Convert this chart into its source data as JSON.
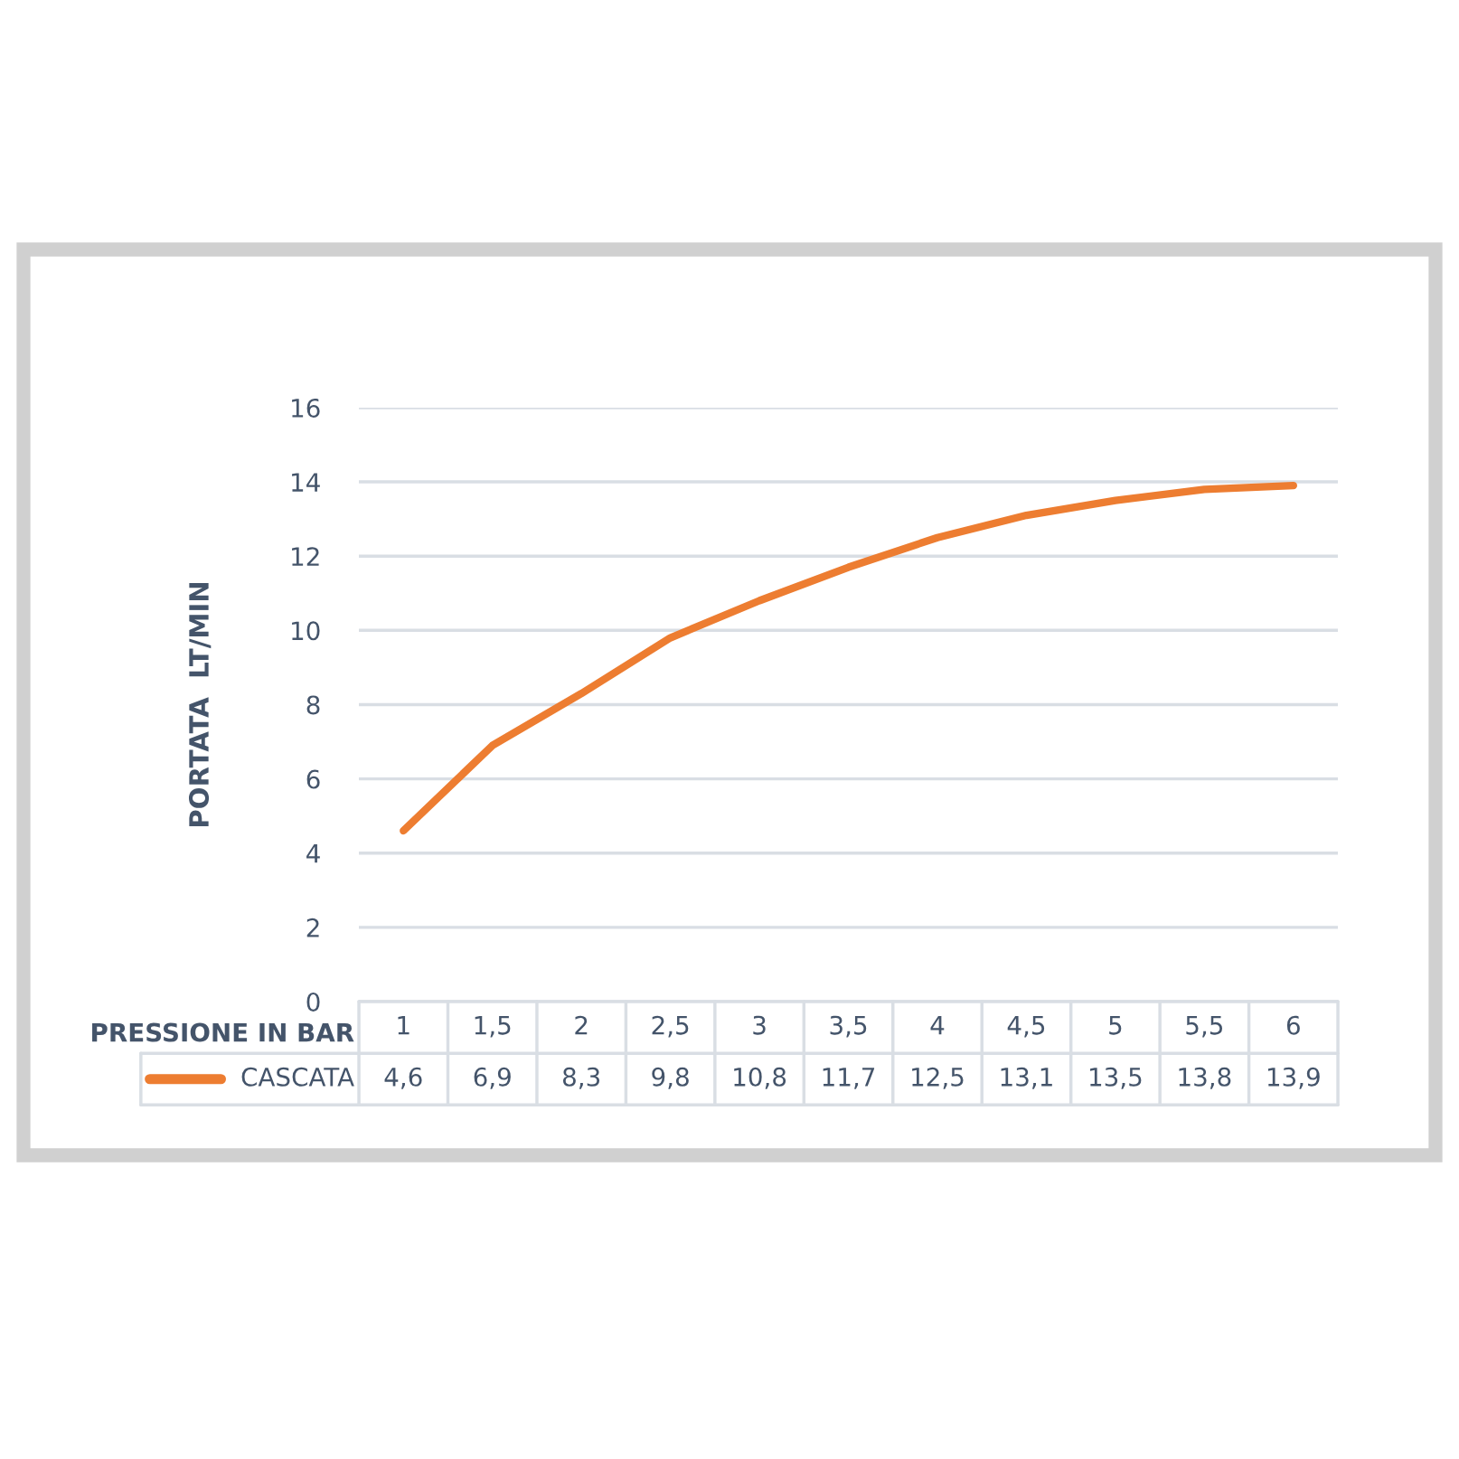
{
  "chart_data": {
    "type": "line",
    "xlabel": "PRESSIONE IN BAR",
    "ylabel": "PORTATA  LT/MIN",
    "categories": [
      "1",
      "1,5",
      "2",
      "2,5",
      "3",
      "3,5",
      "4",
      "4,5",
      "5",
      "5,5",
      "6"
    ],
    "series": [
      {
        "name": "CASCATA",
        "color": "#ed7d31",
        "values": [
          4.6,
          6.9,
          8.3,
          9.8,
          10.8,
          11.7,
          12.5,
          13.1,
          13.5,
          13.8,
          13.9
        ],
        "value_labels": [
          "4,6",
          "6,9",
          "8,3",
          "9,8",
          "10,8",
          "11,7",
          "12,5",
          "13,1",
          "13,5",
          "13,8",
          "13,9"
        ]
      }
    ],
    "ylim": [
      0,
      16
    ],
    "yticks": [
      0,
      2,
      4,
      6,
      8,
      10,
      12,
      14,
      16
    ],
    "grid": "y",
    "legend": "bottom",
    "marker": "none",
    "line_style": "solid"
  }
}
